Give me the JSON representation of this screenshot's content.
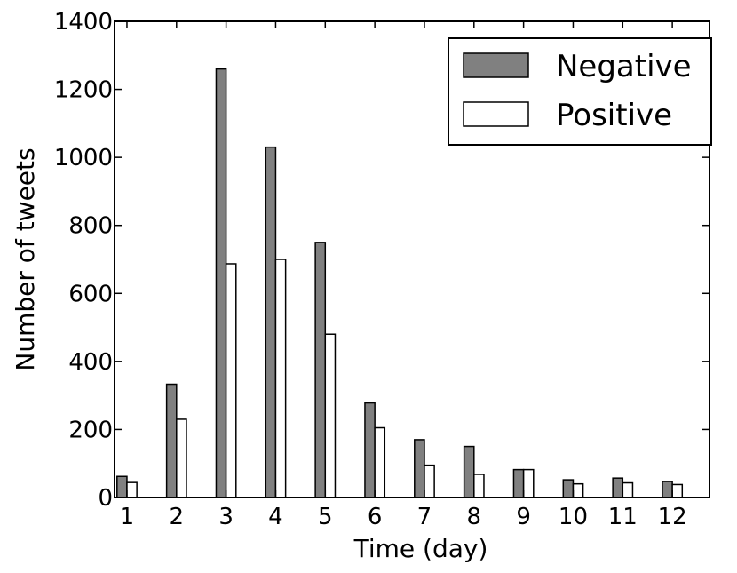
{
  "chart_data": {
    "type": "bar",
    "title": "",
    "xlabel": "Time (day)",
    "ylabel": "Number of tweets",
    "categories": [
      "1",
      "2",
      "3",
      "4",
      "5",
      "6",
      "7",
      "8",
      "9",
      "10",
      "11",
      "12"
    ],
    "ylim": [
      0,
      1400
    ],
    "yticks": [
      0,
      200,
      400,
      600,
      800,
      1000,
      1200,
      1400
    ],
    "yticks_labels": [
      "0",
      "200",
      "400",
      "600",
      "800",
      "1000",
      "1200",
      "1400"
    ],
    "legend_position": "top-right",
    "series": [
      {
        "name": "Negative",
        "color": "#808080",
        "values": [
          62,
          333,
          1260,
          1030,
          750,
          278,
          170,
          150,
          82,
          52,
          57,
          47
        ]
      },
      {
        "name": "Positive",
        "color": "#ffffff",
        "values": [
          44,
          230,
          687,
          700,
          480,
          205,
          95,
          68,
          82,
          40,
          43,
          38
        ]
      }
    ]
  }
}
